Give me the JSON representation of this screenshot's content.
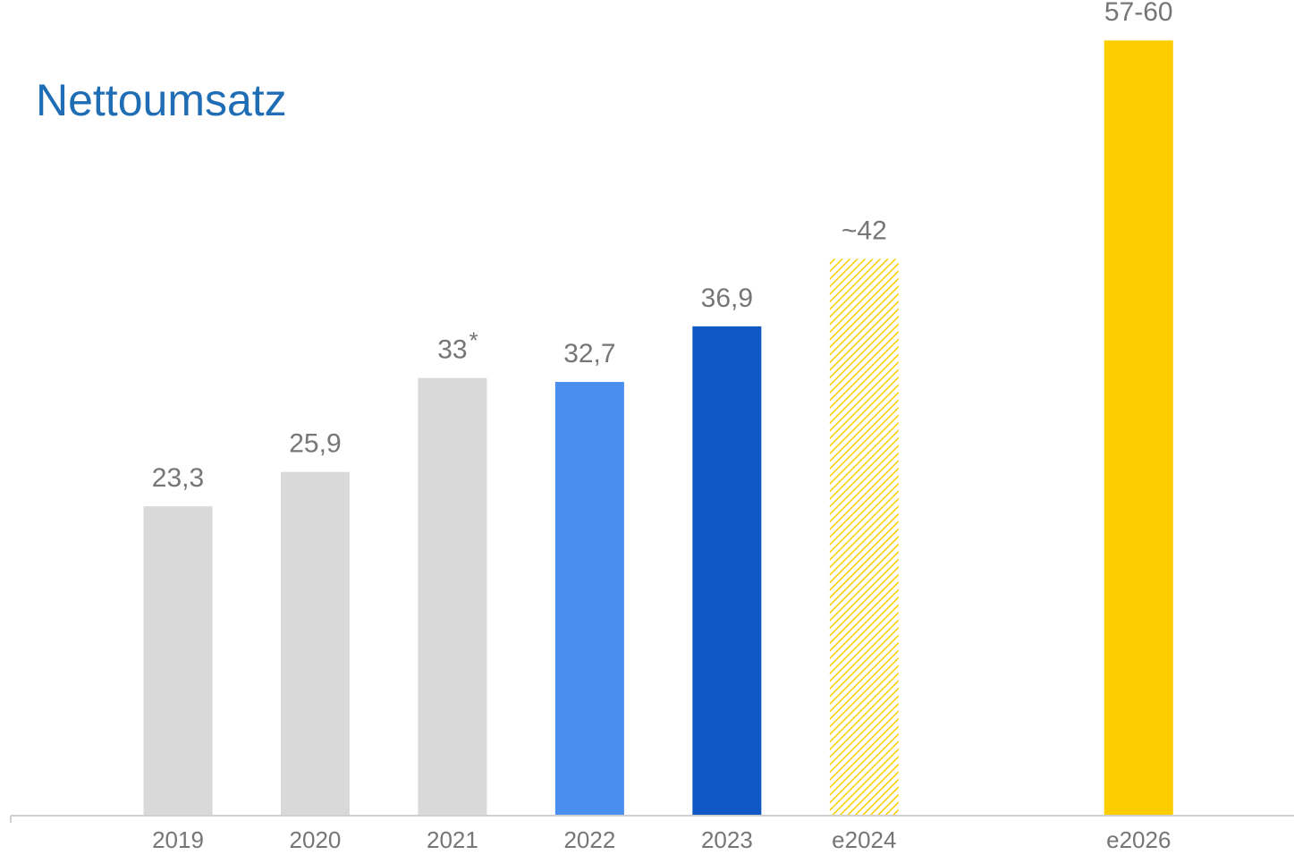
{
  "chart_data": {
    "type": "bar",
    "title": "Nettoumsatz",
    "categories": [
      "2019",
      "2020",
      "2021",
      "2022",
      "2023",
      "e2024",
      null,
      "e2026"
    ],
    "values": [
      23.3,
      25.9,
      33,
      32.7,
      36.9,
      42,
      null,
      58.5
    ],
    "value_labels": [
      "23,3",
      "25,9",
      "33",
      "32,7",
      "36,9",
      "~42",
      null,
      "57-60"
    ],
    "colors": [
      "#d9d9d9",
      "#d9d9d9",
      "#d9d9d9",
      "#4a8ef0",
      "#0f57c2",
      "#fdcd00",
      null,
      "#fdcd00"
    ],
    "hatched": [
      false,
      false,
      false,
      false,
      false,
      true,
      false,
      false
    ],
    "annotations": [
      {
        "text": "*",
        "category": "2021"
      }
    ],
    "ylim": [
      0,
      60
    ]
  }
}
